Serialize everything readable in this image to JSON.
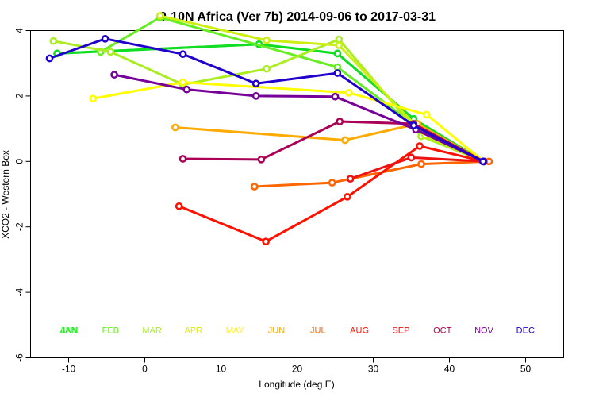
{
  "chart_data": {
    "type": "line",
    "title": "0-10N Africa (Ver 7b)   2014-09-06 to 2017-03-31",
    "xlabel": "Longitude (deg E)",
    "ylabel": "XCO2 - Western Box",
    "xlim": [
      -15,
      55
    ],
    "ylim": [
      -6,
      4
    ],
    "xticks": [
      -10,
      0,
      10,
      20,
      30,
      40,
      50
    ],
    "yticks": [
      -6,
      -4,
      -2,
      0,
      2,
      4
    ],
    "grid": false,
    "month_labels": [
      "JAN",
      "FEB",
      "MAR",
      "APR",
      "MAY",
      "JUN",
      "JUL",
      "AUG",
      "SEP",
      "OCT",
      "NOV",
      "DEC"
    ],
    "month_label_y": -5.15,
    "series": [
      {
        "name": "ANN",
        "color": "#33ee33",
        "x": [
          -11.5,
          15.0,
          25.3,
          35.3,
          44.5
        ],
        "y": [
          3.3,
          3.58,
          3.3,
          1.3,
          0.0
        ]
      },
      {
        "name": "JAN",
        "color": "#11dd22",
        "x": [
          -11.5,
          15.0,
          25.3,
          35.3,
          44.5
        ],
        "y": [
          3.3,
          3.58,
          3.3,
          1.3,
          0.0
        ]
      },
      {
        "name": "FEB",
        "color": "#66ee22",
        "x": [
          -5.8,
          2.0,
          25.3,
          35.5,
          44.5
        ],
        "y": [
          3.35,
          4.4,
          2.88,
          1.1,
          0.0
        ]
      },
      {
        "name": "MAR",
        "color": "#aaee22",
        "x": [
          -12.0,
          -4.5,
          5.0,
          16.0,
          25.5,
          36.3,
          44.5
        ],
        "y": [
          3.68,
          3.35,
          2.35,
          2.83,
          3.73,
          0.77,
          0.0
        ]
      },
      {
        "name": "APR",
        "color": "#ccee11",
        "x": [
          2.0,
          16.0,
          25.5,
          36.8,
          44.5
        ],
        "y": [
          4.45,
          3.7,
          3.55,
          0.8,
          0.0
        ]
      },
      {
        "name": "MAY",
        "color": "#ffff00",
        "x": [
          -6.8,
          5.0,
          26.8,
          37.0,
          44.5
        ],
        "y": [
          1.92,
          2.42,
          2.1,
          1.43,
          0.0
        ]
      },
      {
        "name": "JUN",
        "color": "#ffaa00",
        "x": [
          4.0,
          26.3,
          35.8,
          44.5
        ],
        "y": [
          1.04,
          0.65,
          1.15,
          0.0
        ]
      },
      {
        "name": "JUL",
        "color": "#ff6600",
        "x": [
          14.4,
          24.6,
          36.3,
          45.2
        ],
        "y": [
          -0.77,
          -0.65,
          -0.08,
          0.0
        ]
      },
      {
        "name": "AUG",
        "color": "#ff1100",
        "x": [
          4.5,
          15.9,
          26.6,
          36.1,
          44.5
        ],
        "y": [
          -1.37,
          -2.45,
          -1.08,
          0.47,
          0.0
        ]
      },
      {
        "name": "SEP",
        "color": "#ee1111",
        "x": [
          27.0,
          35.0,
          44.5
        ],
        "y": [
          -0.53,
          0.12,
          0.0
        ]
      },
      {
        "name": "OCT",
        "color": "#aa0055",
        "x": [
          5.0,
          15.3,
          25.6,
          35.3,
          44.5
        ],
        "y": [
          0.08,
          0.06,
          1.22,
          1.15,
          0.0
        ]
      },
      {
        "name": "NOV",
        "color": "#770099",
        "x": [
          -4.0,
          5.5,
          14.6,
          25.0,
          35.6,
          44.5
        ],
        "y": [
          2.65,
          2.2,
          2.0,
          1.98,
          0.97,
          0.0
        ]
      },
      {
        "name": "DEC",
        "color": "#2200cc",
        "x": [
          -12.5,
          -5.2,
          5.0,
          14.6,
          25.3,
          35.3,
          44.4
        ],
        "y": [
          3.15,
          3.75,
          3.28,
          2.38,
          2.7,
          1.1,
          0.0
        ]
      }
    ]
  }
}
